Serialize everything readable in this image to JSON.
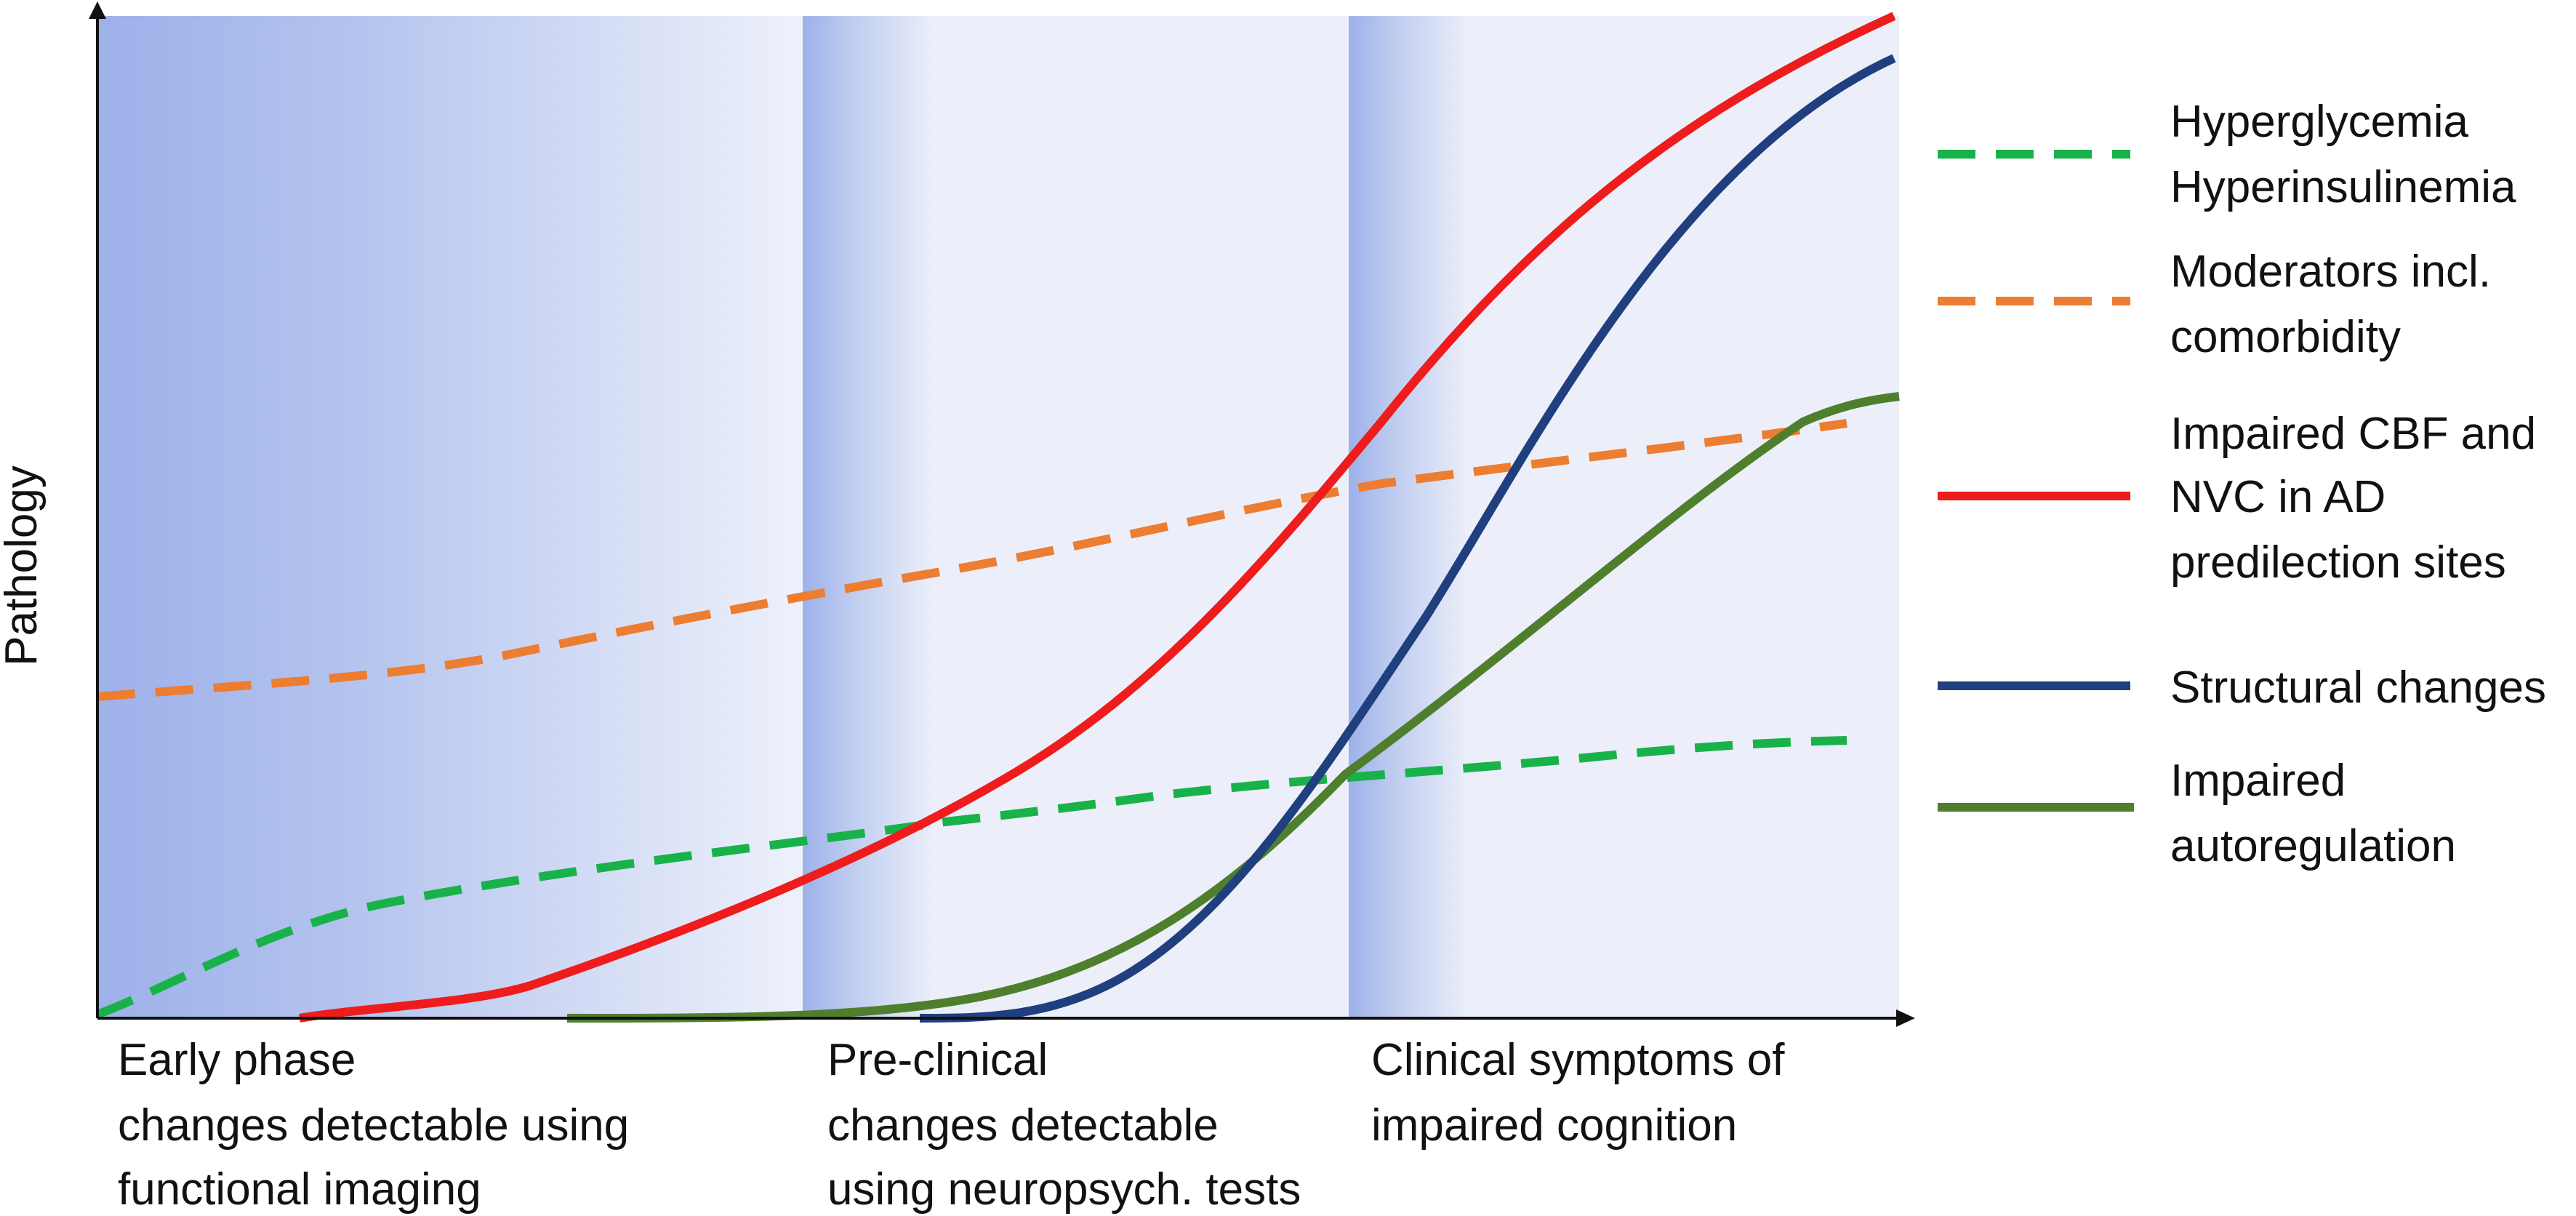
{
  "axes": {
    "ylabel": "Pathology"
  },
  "colors": {
    "background": "#eceff9",
    "band": "#9db1ea",
    "axis": "#111111",
    "hyperglycemia": "#19b24a",
    "moderators": "#ec7d31",
    "cbf_nvc": "#ee1c1c",
    "structural": "#203f7f",
    "autoregulation": "#4f7f2d"
  },
  "phases": [
    {
      "id": "early",
      "lines": [
        "Early phase",
        "changes detectable using",
        "functional imaging"
      ]
    },
    {
      "id": "preclinical",
      "lines": [
        "Pre-clinical",
        "changes detectable",
        "using neuropsych. tests"
      ]
    },
    {
      "id": "clinical",
      "lines": [
        "Clinical symptoms of",
        "impaired cognition"
      ]
    }
  ],
  "legend": [
    {
      "id": "hyperglycemia",
      "style": "dashed",
      "color_key": "hyperglycemia",
      "lines": [
        "Hyperglycemia",
        "Hyperinsulinemia"
      ]
    },
    {
      "id": "moderators",
      "style": "dashed",
      "color_key": "moderators",
      "lines": [
        "Moderators incl.",
        "comorbidity"
      ]
    },
    {
      "id": "cbf_nvc",
      "style": "solid",
      "color_key": "cbf_nvc",
      "lines": [
        "Impaired CBF and",
        "NVC in AD",
        "predilection sites"
      ]
    },
    {
      "id": "structural",
      "style": "solid",
      "color_key": "structural",
      "lines": [
        "Structural changes"
      ]
    },
    {
      "id": "autoregulation",
      "style": "solid",
      "color_key": "autoregulation",
      "lines": [
        "Impaired",
        "autoregulation"
      ]
    }
  ]
}
